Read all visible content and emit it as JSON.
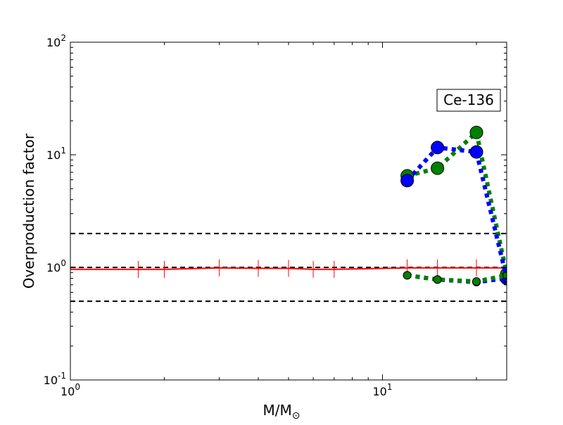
{
  "chart_data": {
    "type": "line",
    "xlabel": "M/M",
    "xlabel_sub": "⊙",
    "ylabel": "Overproduction factor",
    "xscale": "log",
    "yscale": "log",
    "xlim": [
      1,
      25
    ],
    "ylim": [
      0.1,
      100
    ],
    "x_ticks": [
      {
        "value": 1,
        "base": "10",
        "exp": "0"
      },
      {
        "value": 10,
        "base": "10",
        "exp": "1"
      }
    ],
    "y_ticks": [
      {
        "value": 0.1,
        "base": "10",
        "exp": "-1"
      },
      {
        "value": 1,
        "base": "10",
        "exp": "0"
      },
      {
        "value": 10,
        "base": "10",
        "exp": "1"
      },
      {
        "value": 100,
        "base": "10",
        "exp": "2"
      }
    ],
    "annotation": "Ce-136",
    "annotation_position": "top-right",
    "reference_lines": [
      {
        "y": 2.0,
        "color": "#000000",
        "style": "dashed"
      },
      {
        "y": 1.0,
        "color": "#000000",
        "style": "dashed"
      },
      {
        "y": 0.5,
        "color": "#000000",
        "style": "dashed"
      }
    ],
    "series": [
      {
        "color": "#ff0000",
        "style": "solid",
        "marker": "tick",
        "x": [
          1.0,
          1.65,
          2.0,
          3.0,
          4.0,
          5.0,
          6.0,
          7.0,
          12.0,
          15.0,
          20.0,
          25.0
        ],
        "y": [
          0.96,
          0.96,
          0.96,
          0.99,
          0.98,
          0.98,
          0.96,
          0.96,
          0.99,
          0.99,
          0.99,
          0.99
        ]
      },
      {
        "color": "#008000",
        "style": "dotted",
        "marker": "circle",
        "x": [
          12.0,
          15.0,
          20.0,
          25.0
        ],
        "y": [
          6.5,
          7.6,
          15.8,
          0.87
        ]
      },
      {
        "color": "#0000ff",
        "style": "dotted",
        "marker": "circle",
        "x": [
          12.0,
          15.0,
          20.0,
          25.0
        ],
        "y": [
          5.9,
          11.6,
          10.6,
          0.8
        ]
      },
      {
        "color": "#0000ff",
        "style": "dotted",
        "marker": "small-circle",
        "x": [
          12.0,
          15.0,
          20.0,
          25.0
        ],
        "y": [
          0.85,
          0.78,
          0.74,
          0.8
        ]
      },
      {
        "color": "#008000",
        "style": "dotted",
        "marker": "small-circle",
        "x": [
          12.0,
          15.0,
          20.0,
          25.0
        ],
        "y": [
          0.85,
          0.78,
          0.75,
          0.85
        ]
      }
    ]
  }
}
